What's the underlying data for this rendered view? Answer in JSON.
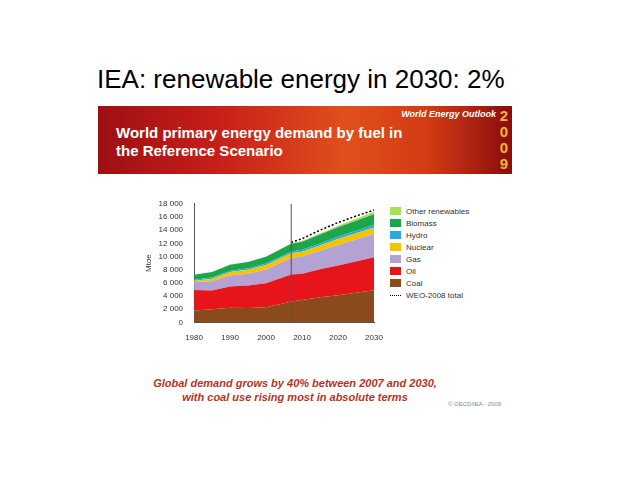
{
  "slide_title": "IEA: renewable energy in 2030: 2%",
  "banner": {
    "badge": "World Energy Outlook",
    "year": "2009"
  },
  "chart_data": {
    "type": "area",
    "title": "World primary energy demand by fuel in the Reference Scenario",
    "y_label": "Mtoe",
    "stacked": true,
    "grid": false,
    "legend": "right",
    "x": [
      1980,
      1985,
      1990,
      1995,
      2000,
      2005,
      2007,
      2010,
      2015,
      2020,
      2025,
      2030
    ],
    "xlim": [
      1980,
      2030
    ],
    "xticks": [
      1980,
      1990,
      2000,
      2010,
      2020,
      2030
    ],
    "ylim": [
      0,
      18000
    ],
    "yticks": [
      0,
      {
        "value": 2000,
        "label": "2 000"
      },
      {
        "value": 4000,
        "label": "4 000"
      },
      {
        "value": 6000,
        "label": "6 000"
      },
      {
        "value": 8000,
        "label": "8 000"
      },
      {
        "value": 10000,
        "label": "10 000"
      },
      {
        "value": 12000,
        "label": "12 000"
      },
      {
        "value": 14000,
        "label": "14 000"
      },
      {
        "value": 16000,
        "label": "16 000"
      },
      {
        "value": 18000,
        "label": "18 000"
      }
    ],
    "projection_start": 2007,
    "series": [
      {
        "name": "Other renewables",
        "color": "#a8e05a",
        "values": [
          12,
          20,
          36,
          45,
          55,
          65,
          74,
          100,
          160,
          241,
          310,
          370
        ]
      },
      {
        "name": "Biomass",
        "color": "#1ca54a",
        "values": [
          749,
          840,
          903,
          960,
          1031,
          1140,
          1176,
          1230,
          1338,
          1435,
          1520,
          1604
        ]
      },
      {
        "name": "Hydro",
        "color": "#2aa8e0",
        "values": [
          148,
          170,
          184,
          210,
          225,
          250,
          265,
          280,
          317,
          348,
          376,
          402
        ]
      },
      {
        "name": "Nuclear",
        "color": "#f5c400",
        "values": [
          186,
          380,
          526,
          608,
          676,
          720,
          709,
          740,
          810,
          901,
          930,
          956
        ]
      },
      {
        "name": "Gas",
        "color": "#b4a2d2",
        "values": [
          1234,
          1400,
          1675,
          1800,
          2085,
          2380,
          2512,
          2600,
          2801,
          3105,
          3350,
          3561
        ]
      },
      {
        "name": "Oil",
        "color": "#e8141c",
        "values": [
          3107,
          2850,
          3230,
          3400,
          3655,
          3990,
          4093,
          4000,
          4234,
          4512,
          4750,
          5009
        ]
      },
      {
        "name": "Coal",
        "color": "#8b4a1c",
        "values": [
          1792,
          2000,
          2220,
          2200,
          2292,
          2900,
          3184,
          3400,
          3828,
          4125,
          4500,
          4887
        ]
      },
      {
        "name": "WEO-2008 total",
        "color": "#000000",
        "type": "line",
        "line_style": "dotted",
        "values": [
          null,
          null,
          null,
          null,
          null,
          null,
          12150,
          12700,
          14000,
          15150,
          16150,
          17050
        ]
      }
    ]
  },
  "caption": [
    "Global demand grows by 40% between 2007 and 2030,",
    "with coal use rising most in absolute terms"
  ],
  "copyright": "© OECD/IEA - 2009"
}
